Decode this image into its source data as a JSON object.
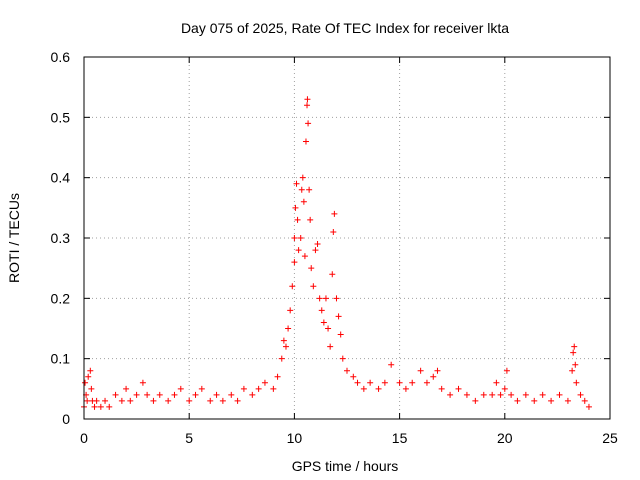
{
  "chart_data": {
    "type": "scatter",
    "title": "Day 075 of 2025, Rate Of TEC Index for receiver lkta",
    "xlabel": "GPS time / hours",
    "ylabel": "ROTI / TECUs",
    "xlim": [
      0,
      25
    ],
    "ylim": [
      0,
      0.6
    ],
    "xticks": [
      0,
      5,
      10,
      15,
      20,
      25
    ],
    "xtick_labels": [
      "0",
      "5",
      "10",
      "15",
      "20",
      "25"
    ],
    "yticks": [
      0,
      0.1,
      0.2,
      0.3,
      0.4,
      0.5,
      0.6
    ],
    "ytick_labels": [
      "0",
      "0.1",
      "0.2",
      "0.3",
      "0.4",
      "0.5",
      "0.6"
    ],
    "grid": true,
    "marker": "+",
    "color": "#ff0000",
    "series": [
      {
        "name": "ROTI",
        "points": [
          [
            0.0,
            0.02
          ],
          [
            0.05,
            0.06
          ],
          [
            0.1,
            0.04
          ],
          [
            0.15,
            0.03
          ],
          [
            0.2,
            0.07
          ],
          [
            0.3,
            0.08
          ],
          [
            0.35,
            0.05
          ],
          [
            0.4,
            0.03
          ],
          [
            0.5,
            0.02
          ],
          [
            0.6,
            0.03
          ],
          [
            0.8,
            0.02
          ],
          [
            1.0,
            0.03
          ],
          [
            1.2,
            0.02
          ],
          [
            1.5,
            0.04
          ],
          [
            1.8,
            0.03
          ],
          [
            2.0,
            0.05
          ],
          [
            2.2,
            0.03
          ],
          [
            2.5,
            0.04
          ],
          [
            2.8,
            0.06
          ],
          [
            3.0,
            0.04
          ],
          [
            3.3,
            0.03
          ],
          [
            3.6,
            0.04
          ],
          [
            4.0,
            0.03
          ],
          [
            4.3,
            0.04
          ],
          [
            4.6,
            0.05
          ],
          [
            5.0,
            0.03
          ],
          [
            5.3,
            0.04
          ],
          [
            5.6,
            0.05
          ],
          [
            6.0,
            0.03
          ],
          [
            6.3,
            0.04
          ],
          [
            6.6,
            0.03
          ],
          [
            7.0,
            0.04
          ],
          [
            7.3,
            0.03
          ],
          [
            7.6,
            0.05
          ],
          [
            8.0,
            0.04
          ],
          [
            8.3,
            0.05
          ],
          [
            8.6,
            0.06
          ],
          [
            9.0,
            0.05
          ],
          [
            9.2,
            0.07
          ],
          [
            9.4,
            0.1
          ],
          [
            9.5,
            0.13
          ],
          [
            9.6,
            0.12
          ],
          [
            9.7,
            0.15
          ],
          [
            9.8,
            0.18
          ],
          [
            9.9,
            0.22
          ],
          [
            10.0,
            0.26
          ],
          [
            10.0,
            0.3
          ],
          [
            10.05,
            0.35
          ],
          [
            10.1,
            0.39
          ],
          [
            10.15,
            0.33
          ],
          [
            10.2,
            0.28
          ],
          [
            10.3,
            0.3
          ],
          [
            10.35,
            0.38
          ],
          [
            10.4,
            0.4
          ],
          [
            10.45,
            0.36
          ],
          [
            10.5,
            0.27
          ],
          [
            10.55,
            0.46
          ],
          [
            10.6,
            0.52
          ],
          [
            10.62,
            0.53
          ],
          [
            10.65,
            0.49
          ],
          [
            10.7,
            0.38
          ],
          [
            10.75,
            0.33
          ],
          [
            10.8,
            0.25
          ],
          [
            10.9,
            0.22
          ],
          [
            11.0,
            0.28
          ],
          [
            11.1,
            0.29
          ],
          [
            11.2,
            0.2
          ],
          [
            11.3,
            0.18
          ],
          [
            11.4,
            0.16
          ],
          [
            11.5,
            0.2
          ],
          [
            11.6,
            0.15
          ],
          [
            11.7,
            0.12
          ],
          [
            11.8,
            0.24
          ],
          [
            11.85,
            0.31
          ],
          [
            11.9,
            0.34
          ],
          [
            12.0,
            0.2
          ],
          [
            12.1,
            0.17
          ],
          [
            12.2,
            0.14
          ],
          [
            12.3,
            0.1
          ],
          [
            12.5,
            0.08
          ],
          [
            12.8,
            0.07
          ],
          [
            13.0,
            0.06
          ],
          [
            13.3,
            0.05
          ],
          [
            13.6,
            0.06
          ],
          [
            14.0,
            0.05
          ],
          [
            14.3,
            0.06
          ],
          [
            14.6,
            0.09
          ],
          [
            15.0,
            0.06
          ],
          [
            15.3,
            0.05
          ],
          [
            15.6,
            0.06
          ],
          [
            16.0,
            0.08
          ],
          [
            16.3,
            0.06
          ],
          [
            16.6,
            0.07
          ],
          [
            16.8,
            0.08
          ],
          [
            17.0,
            0.05
          ],
          [
            17.4,
            0.04
          ],
          [
            17.8,
            0.05
          ],
          [
            18.2,
            0.04
          ],
          [
            18.6,
            0.03
          ],
          [
            19.0,
            0.04
          ],
          [
            19.4,
            0.04
          ],
          [
            19.6,
            0.06
          ],
          [
            19.8,
            0.04
          ],
          [
            20.0,
            0.05
          ],
          [
            20.1,
            0.08
          ],
          [
            20.3,
            0.04
          ],
          [
            20.6,
            0.03
          ],
          [
            21.0,
            0.04
          ],
          [
            21.4,
            0.03
          ],
          [
            21.8,
            0.04
          ],
          [
            22.2,
            0.03
          ],
          [
            22.6,
            0.04
          ],
          [
            23.0,
            0.03
          ],
          [
            23.2,
            0.08
          ],
          [
            23.25,
            0.11
          ],
          [
            23.3,
            0.12
          ],
          [
            23.35,
            0.09
          ],
          [
            23.4,
            0.06
          ],
          [
            23.6,
            0.04
          ],
          [
            23.8,
            0.03
          ],
          [
            24.0,
            0.02
          ]
        ]
      }
    ]
  }
}
